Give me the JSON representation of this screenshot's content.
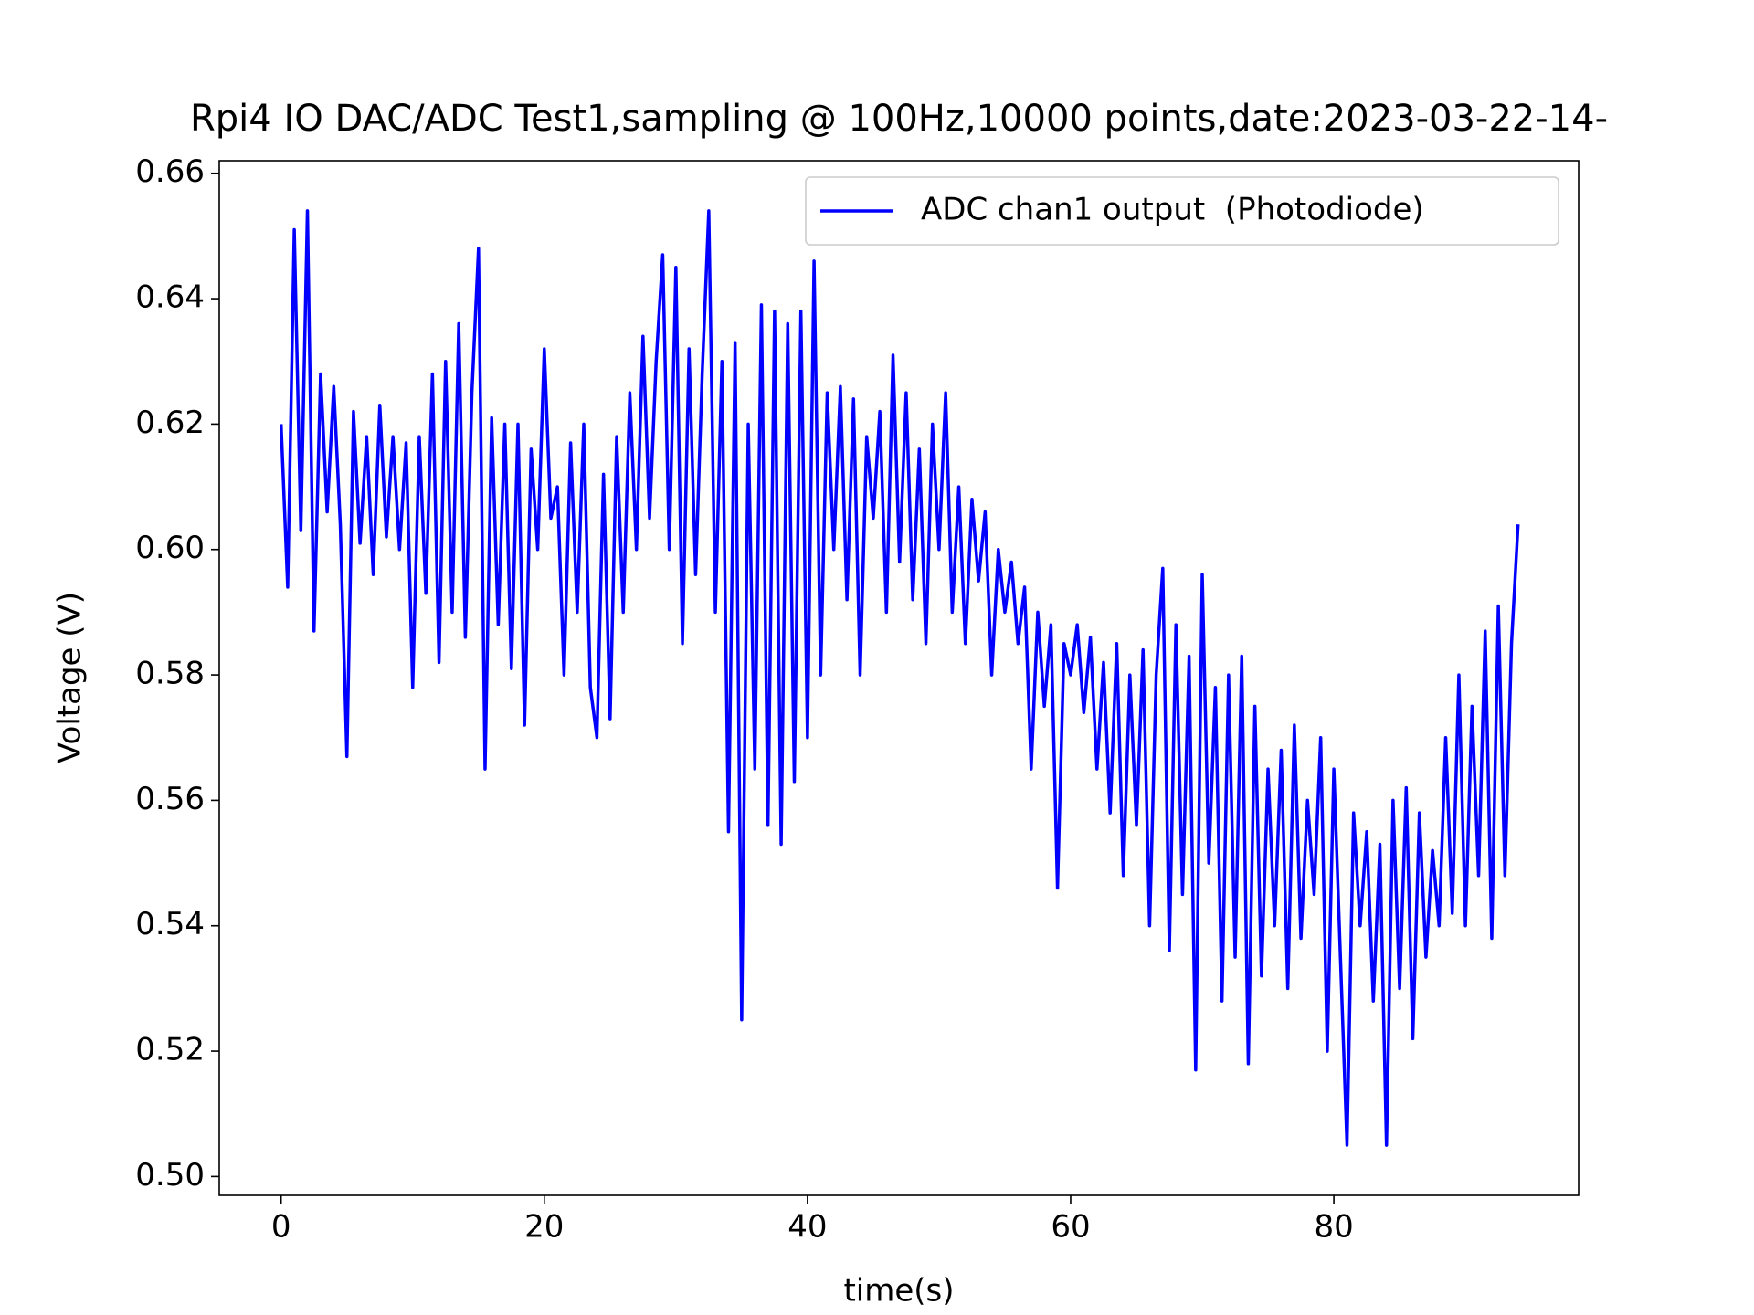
{
  "chart_data": {
    "type": "line",
    "title": "Rpi4 IO DAC/ADC Test1,sampling @ 100Hz,10000 points,date:2023-03-22-14-",
    "xlabel": "time(s)",
    "ylabel": "Voltage (V)",
    "xlim": [
      -4.7,
      98.6
    ],
    "ylim": [
      0.497,
      0.662
    ],
    "xticks": [
      0,
      20,
      40,
      60,
      80
    ],
    "yticks": [
      {
        "value": 0.5,
        "label": "0.50"
      },
      {
        "value": 0.52,
        "label": "0.52"
      },
      {
        "value": 0.54,
        "label": "0.54"
      },
      {
        "value": 0.56,
        "label": "0.56"
      },
      {
        "value": 0.58,
        "label": "0.58"
      },
      {
        "value": 0.6,
        "label": "0.60"
      },
      {
        "value": 0.62,
        "label": "0.62"
      },
      {
        "value": 0.64,
        "label": "0.64"
      },
      {
        "value": 0.66,
        "label": "0.66"
      }
    ],
    "legend": "upper right",
    "grid": false,
    "x": [
      0,
      0.5,
      1,
      1.5,
      2,
      2.5,
      3,
      3.5,
      4,
      4.5,
      5,
      5.5,
      6,
      6.5,
      7,
      7.5,
      8,
      8.5,
      9,
      9.5,
      10,
      10.5,
      11,
      11.5,
      12,
      12.5,
      13,
      13.5,
      14,
      14.5,
      15,
      15.5,
      16,
      16.5,
      17,
      17.5,
      18,
      18.5,
      19,
      19.5,
      20,
      20.5,
      21,
      21.5,
      22,
      22.5,
      23,
      23.5,
      24,
      24.5,
      25,
      25.5,
      26,
      26.5,
      27,
      27.5,
      28,
      28.5,
      29,
      29.5,
      30,
      30.5,
      31,
      31.5,
      32,
      32.5,
      33,
      33.5,
      34,
      34.5,
      35,
      35.5,
      36,
      36.5,
      37,
      37.5,
      38,
      38.5,
      39,
      39.5,
      40,
      40.5,
      41,
      41.5,
      42,
      42.5,
      43,
      43.5,
      44,
      44.5,
      45,
      45.5,
      46,
      46.5,
      47,
      47.5,
      48,
      48.5,
      49,
      49.5,
      50,
      50.5,
      51,
      51.5,
      52,
      52.5,
      53,
      53.5,
      54,
      54.5,
      55,
      55.5,
      56,
      56.5,
      57,
      57.5,
      58,
      58.5,
      59,
      59.5,
      60,
      60.5,
      61,
      61.5,
      62,
      62.5,
      63,
      63.5,
      64,
      64.5,
      65,
      65.5,
      66,
      66.5,
      67,
      67.5,
      68,
      68.5,
      69,
      69.5,
      70,
      70.5,
      71,
      71.5,
      72,
      72.5,
      73,
      73.5,
      74,
      74.5,
      75,
      75.5,
      76,
      76.5,
      77,
      77.5,
      78,
      78.5,
      79,
      79.5,
      80,
      80.5,
      81,
      81.5,
      82,
      82.5,
      83,
      83.5,
      84,
      84.5,
      85,
      85.5,
      86,
      86.5,
      87,
      87.5,
      88,
      88.5,
      89,
      89.5,
      90,
      90.5,
      91,
      91.5,
      92,
      92.5,
      93,
      93.5,
      94
    ],
    "series": [
      {
        "name": "ADC chan1 output  (Photodiode)",
        "color": "#0000ff",
        "values": [
          0.62,
          0.594,
          0.651,
          0.603,
          0.654,
          0.587,
          0.628,
          0.606,
          0.626,
          0.604,
          0.567,
          0.622,
          0.601,
          0.618,
          0.596,
          0.623,
          0.602,
          0.618,
          0.6,
          0.617,
          0.578,
          0.618,
          0.593,
          0.628,
          0.582,
          0.63,
          0.59,
          0.636,
          0.586,
          0.625,
          0.648,
          0.565,
          0.621,
          0.588,
          0.62,
          0.581,
          0.62,
          0.572,
          0.616,
          0.6,
          0.632,
          0.605,
          0.61,
          0.58,
          0.617,
          0.59,
          0.62,
          0.578,
          0.57,
          0.612,
          0.573,
          0.618,
          0.59,
          0.625,
          0.6,
          0.634,
          0.605,
          0.63,
          0.647,
          0.6,
          0.645,
          0.585,
          0.632,
          0.596,
          0.628,
          0.654,
          0.59,
          0.63,
          0.555,
          0.633,
          0.525,
          0.62,
          0.565,
          0.639,
          0.556,
          0.638,
          0.553,
          0.636,
          0.563,
          0.638,
          0.57,
          0.646,
          0.58,
          0.625,
          0.6,
          0.626,
          0.592,
          0.624,
          0.58,
          0.618,
          0.605,
          0.622,
          0.59,
          0.631,
          0.598,
          0.625,
          0.592,
          0.616,
          0.585,
          0.62,
          0.6,
          0.625,
          0.59,
          0.61,
          0.585,
          0.608,
          0.595,
          0.606,
          0.58,
          0.6,
          0.59,
          0.598,
          0.585,
          0.594,
          0.565,
          0.59,
          0.575,
          0.588,
          0.546,
          0.585,
          0.58,
          0.588,
          0.574,
          0.586,
          0.565,
          0.582,
          0.558,
          0.585,
          0.548,
          0.58,
          0.556,
          0.584,
          0.54,
          0.58,
          0.597,
          0.536,
          0.588,
          0.545,
          0.583,
          0.517,
          0.596,
          0.55,
          0.578,
          0.528,
          0.58,
          0.535,
          0.583,
          0.518,
          0.575,
          0.532,
          0.565,
          0.54,
          0.568,
          0.53,
          0.572,
          0.538,
          0.56,
          0.545,
          0.57,
          0.52,
          0.565,
          0.535,
          0.505,
          0.558,
          0.54,
          0.555,
          0.528,
          0.553,
          0.505,
          0.56,
          0.53,
          0.562,
          0.522,
          0.558,
          0.535,
          0.552,
          0.54,
          0.57,
          0.542,
          0.58,
          0.54,
          0.575,
          0.548,
          0.587,
          0.538,
          0.591,
          0.548,
          0.585,
          0.604
        ]
      }
    ]
  }
}
